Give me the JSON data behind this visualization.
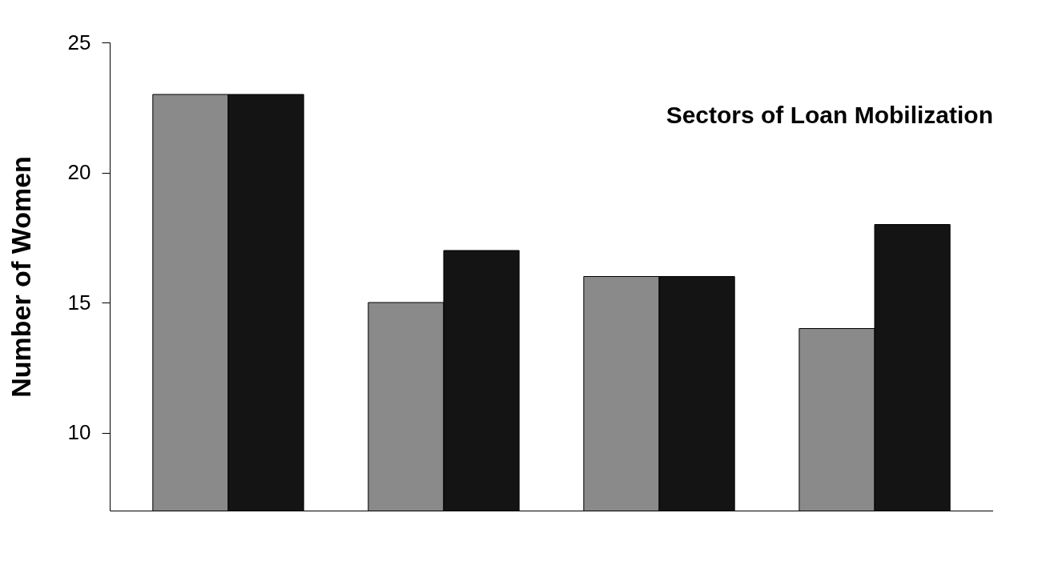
{
  "chart_data": {
    "type": "bar",
    "title": "Sectors of Loan Mobilization",
    "ylabel": "Number of Women",
    "categories": [
      null,
      null,
      null,
      null
    ],
    "series": [
      {
        "color": "#8a8a8a",
        "values": [
          23,
          15,
          16,
          14
        ]
      },
      {
        "color": "#141414",
        "values": [
          23,
          17,
          16,
          18
        ]
      }
    ],
    "ylim": [
      7,
      25
    ],
    "yticks": [
      10,
      15,
      20,
      25
    ],
    "grid": false,
    "legend": false
  }
}
